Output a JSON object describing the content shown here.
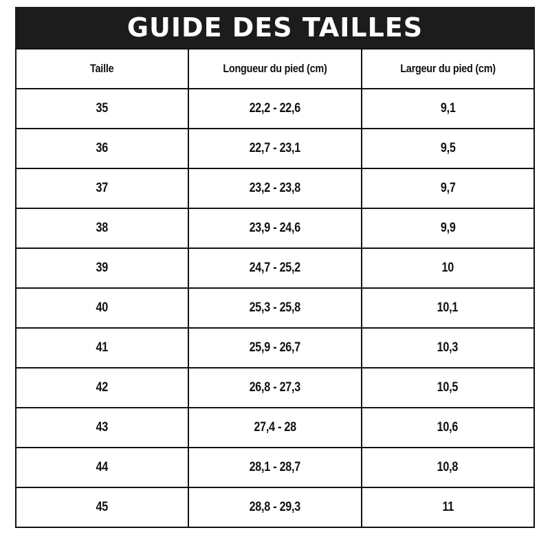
{
  "title": "GUIDE DES TAILLES",
  "columns": [
    "Taille",
    "Longueur du pied (cm)",
    "Largeur du pied (cm)"
  ],
  "rows": [
    [
      "35",
      "22,2 - 22,6",
      "9,1"
    ],
    [
      "36",
      "22,7 - 23,1",
      "9,5"
    ],
    [
      "37",
      "23,2 - 23,8",
      "9,7"
    ],
    [
      "38",
      "23,9 - 24,6",
      "9,9"
    ],
    [
      "39",
      "24,7 - 25,2",
      "10"
    ],
    [
      "40",
      "25,3 - 25,8",
      "10,1"
    ],
    [
      "41",
      "25,9 - 26,7",
      "10,3"
    ],
    [
      "42",
      "26,8 - 27,3",
      "10,5"
    ],
    [
      "43",
      "27,4 - 28",
      "10,6"
    ],
    [
      "44",
      "28,1 - 28,7",
      "10,8"
    ],
    [
      "45",
      "28,8 - 29,3",
      "11"
    ]
  ]
}
